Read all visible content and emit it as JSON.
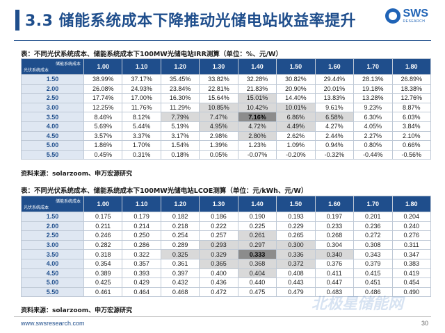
{
  "header": {
    "title": "3.3 储能系统成本下降推动光储电站收益率提升",
    "logo_name": "SWS",
    "logo_sub": "RESEARCH"
  },
  "table1": {
    "caption": "表：不同光伏系统成本、储能系统成本下100MW光储电站IRR测算（单位：%、元/W）",
    "corner_top": "储能系统成本",
    "corner_bottom": "光伏系统成本",
    "columns": [
      "1.00",
      "1.10",
      "1.20",
      "1.30",
      "1.40",
      "1.50",
      "1.60",
      "1.70",
      "1.80"
    ],
    "rows": [
      {
        "label": "1.50",
        "values": [
          "38.99%",
          "37.17%",
          "35.45%",
          "33.82%",
          "32.28%",
          "30.82%",
          "29.44%",
          "28.13%",
          "26.89%"
        ]
      },
      {
        "label": "2.00",
        "values": [
          "26.08%",
          "24.93%",
          "23.84%",
          "22.81%",
          "21.83%",
          "20.90%",
          "20.01%",
          "19.18%",
          "18.38%"
        ]
      },
      {
        "label": "2.50",
        "values": [
          "17.74%",
          "17.00%",
          "16.30%",
          "15.64%",
          "15.01%",
          "14.40%",
          "13.83%",
          "13.28%",
          "12.76%"
        ]
      },
      {
        "label": "3.00",
        "values": [
          "12.25%",
          "11.76%",
          "11.29%",
          "10.85%",
          "10.42%",
          "10.01%",
          "9.61%",
          "9.23%",
          "8.87%"
        ]
      },
      {
        "label": "3.50",
        "values": [
          "8.46%",
          "8.12%",
          "7.79%",
          "7.47%",
          "7.16%",
          "6.86%",
          "6.58%",
          "6.30%",
          "6.03%"
        ]
      },
      {
        "label": "4.00",
        "values": [
          "5.69%",
          "5.44%",
          "5.19%",
          "4.95%",
          "4.72%",
          "4.49%",
          "4.27%",
          "4.05%",
          "3.84%"
        ]
      },
      {
        "label": "4.50",
        "values": [
          "3.57%",
          "3.37%",
          "3.17%",
          "2.98%",
          "2.80%",
          "2.62%",
          "2.44%",
          "2.27%",
          "2.10%"
        ]
      },
      {
        "label": "5.00",
        "values": [
          "1.86%",
          "1.70%",
          "1.54%",
          "1.39%",
          "1.23%",
          "1.09%",
          "0.94%",
          "0.80%",
          "0.66%"
        ]
      },
      {
        "label": "5.50",
        "values": [
          "0.45%",
          "0.31%",
          "0.18%",
          "0.05%",
          "-0.07%",
          "-0.20%",
          "-0.32%",
          "-0.44%",
          "-0.56%"
        ]
      }
    ],
    "source": "资料来源：solarzoom、申万宏源研究"
  },
  "table2": {
    "caption": "表：不同光伏系统成本、储能系统成本下100MW光储电站LCOE测算（单位：元/kWh、元/W）",
    "corner_top": "储能系统成本",
    "corner_bottom": "光伏系统成本",
    "columns": [
      "1.00",
      "1.10",
      "1.20",
      "1.30",
      "1.40",
      "1.50",
      "1.60",
      "1.70",
      "1.80"
    ],
    "rows": [
      {
        "label": "1.50",
        "values": [
          "0.175",
          "0.179",
          "0.182",
          "0.186",
          "0.190",
          "0.193",
          "0.197",
          "0.201",
          "0.204"
        ]
      },
      {
        "label": "2.00",
        "values": [
          "0.211",
          "0.214",
          "0.218",
          "0.222",
          "0.225",
          "0.229",
          "0.233",
          "0.236",
          "0.240"
        ]
      },
      {
        "label": "2.50",
        "values": [
          "0.246",
          "0.250",
          "0.254",
          "0.257",
          "0.261",
          "0.265",
          "0.268",
          "0.272",
          "0.276"
        ]
      },
      {
        "label": "3.00",
        "values": [
          "0.282",
          "0.286",
          "0.289",
          "0.293",
          "0.297",
          "0.300",
          "0.304",
          "0.308",
          "0.311"
        ]
      },
      {
        "label": "3.50",
        "values": [
          "0.318",
          "0.322",
          "0.325",
          "0.329",
          "0.333",
          "0.336",
          "0.340",
          "0.343",
          "0.347"
        ]
      },
      {
        "label": "4.00",
        "values": [
          "0.354",
          "0.357",
          "0.361",
          "0.365",
          "0.368",
          "0.372",
          "0.376",
          "0.379",
          "0.383"
        ]
      },
      {
        "label": "4.50",
        "values": [
          "0.389",
          "0.393",
          "0.397",
          "0.400",
          "0.404",
          "0.408",
          "0.411",
          "0.415",
          "0.419"
        ]
      },
      {
        "label": "5.00",
        "values": [
          "0.425",
          "0.429",
          "0.432",
          "0.436",
          "0.440",
          "0.443",
          "0.447",
          "0.451",
          "0.454"
        ]
      },
      {
        "label": "5.50",
        "values": [
          "0.461",
          "0.464",
          "0.468",
          "0.472",
          "0.475",
          "0.479",
          "0.483",
          "0.486",
          "0.490"
        ]
      }
    ],
    "source": "资料来源：solarzoom、申万宏源研究"
  },
  "footer": {
    "url": "www.swsresearch.com",
    "page": "30",
    "watermark": "北极星储能网"
  },
  "colors": {
    "brand_blue": "#1f4e8c",
    "row_header_bg": "#dfe7f2",
    "shade_gray": "#d9d9d9",
    "highlight_gray": "#8c8c8c"
  }
}
